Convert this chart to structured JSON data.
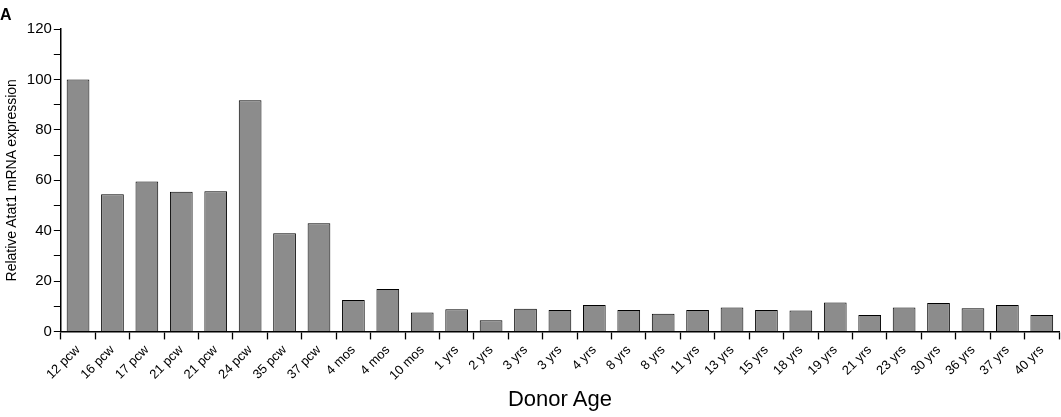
{
  "chart_data": {
    "type": "bar",
    "title": "A",
    "xlabel": "Donor Age",
    "ylabel": "Relative Atat1 mRNA expression",
    "categories": [
      "12 pcw",
      "16 pcw",
      "17 pcw",
      "21 pcw",
      "21 pcw",
      "24 pcw",
      "35 pcw",
      "37 pcw",
      "4 mos",
      "4 mos",
      "10 mos",
      "1 yrs",
      "2 yrs",
      "3 yrs",
      "3 yrs",
      "4 yrs",
      "8 yrs",
      "8 yrs",
      "11 yrs",
      "13 yrs",
      "15 yrs",
      "18 yrs",
      "19 yrs",
      "21 yrs",
      "23 yrs",
      "30 yrs",
      "36 yrs",
      "37 yrs",
      "40 yrs"
    ],
    "values": [
      100,
      54.5,
      59.5,
      55.5,
      55.7,
      91.8,
      39,
      43,
      12.5,
      16.8,
      7.5,
      8.8,
      4.4,
      9,
      8.5,
      10.5,
      8.5,
      7,
      8.5,
      9.5,
      8.5,
      8.3,
      11.5,
      6.5,
      9.5,
      11.3,
      9.2,
      10.5,
      6.5
    ],
    "color": "#8c8c8c",
    "ylim": [
      0,
      120
    ],
    "yticks": [
      0,
      {
        "value": 10,
        "label": null
      },
      20,
      {
        "value": 30,
        "label": null
      },
      40,
      {
        "value": 50,
        "label": null
      },
      60,
      {
        "value": 70,
        "label": null
      },
      80,
      {
        "value": 90,
        "label": null
      },
      100,
      {
        "value": 110,
        "label": null
      },
      120
    ],
    "grid": false,
    "legend": false
  }
}
